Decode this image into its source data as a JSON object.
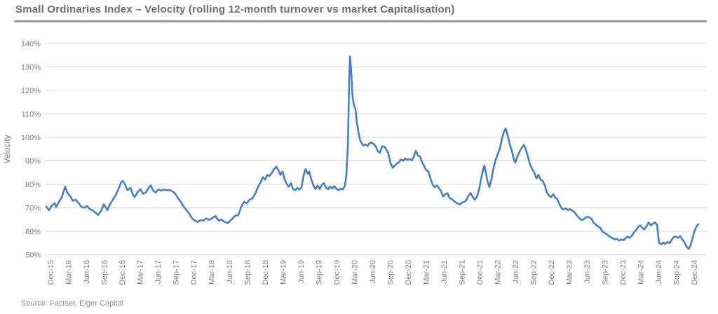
{
  "header": {
    "title": "Small Ordinaries Index – Velocity (rolling 12-month turnover vs market Capitalisation)"
  },
  "footer": {
    "source": "Source: Factset, Eiger Capital"
  },
  "chart_data": {
    "type": "line",
    "title": "Small Ordinaries Index – Velocity (rolling 12-month turnover vs market Capitalisation)",
    "xlabel": "",
    "ylabel": "Velocity",
    "ylim": [
      50,
      140
    ],
    "ytick_step": 10,
    "yticks": [
      "140%",
      "130%",
      "120%",
      "110%",
      "100%",
      "90%",
      "80%",
      "70%",
      "60%",
      "50%"
    ],
    "xticks": [
      "Dec-15",
      "Mar-16",
      "Jun-16",
      "Sep-16",
      "Dec-16",
      "Mar-17",
      "Jun-17",
      "Sep-17",
      "Dec-17",
      "Mar-18",
      "Jun-18",
      "Sep-18",
      "Dec-18",
      "Mar-19",
      "Jun-19",
      "Sep-19",
      "Dec-19",
      "Mar-20",
      "Jun-20",
      "Sep-20",
      "Dec-20",
      "Mar-21",
      "Jun-21",
      "Sep-21",
      "Dec-21",
      "Mar-22",
      "Jun-22",
      "Sep-22",
      "Dec-22",
      "Mar-23",
      "Jun-23",
      "Sep-23",
      "Dec-23",
      "Mar-24",
      "Jun-24",
      "Sep-24",
      "Dec-24"
    ],
    "grid": "horizontal",
    "legend": "none",
    "line_color": "#4a7eba",
    "notable_points": {
      "covid_spike_mar20_pct": 134.5,
      "peak_apr22_pct": 104,
      "trough_nov24_pct": 52.5,
      "last_value_dec24_pct": 63
    },
    "series": [
      {
        "name": "Velocity",
        "x_unit": "quarters_since_Dec-15",
        "points": [
          [
            -0.24,
            70.5
          ],
          [
            -0.08,
            69
          ],
          [
            0.08,
            71
          ],
          [
            0.24,
            72
          ],
          [
            0.31,
            70.2
          ],
          [
            0.47,
            72.5
          ],
          [
            0.63,
            74.5
          ],
          [
            0.82,
            79
          ],
          [
            0.94,
            76.5
          ],
          [
            1.1,
            75
          ],
          [
            1.25,
            73
          ],
          [
            1.41,
            73.5
          ],
          [
            1.57,
            72
          ],
          [
            1.73,
            70.5
          ],
          [
            1.88,
            70
          ],
          [
            2.04,
            70.8
          ],
          [
            2.2,
            69.5
          ],
          [
            2.35,
            69
          ],
          [
            2.51,
            68
          ],
          [
            2.67,
            67
          ],
          [
            2.82,
            68.5
          ],
          [
            2.98,
            71.5
          ],
          [
            3.18,
            69
          ],
          [
            3.33,
            71.5
          ],
          [
            3.49,
            73.5
          ],
          [
            3.65,
            75.5
          ],
          [
            3.8,
            78
          ],
          [
            3.96,
            81
          ],
          [
            4.04,
            81.5
          ],
          [
            4.16,
            80
          ],
          [
            4.31,
            77.5
          ],
          [
            4.47,
            78.5
          ],
          [
            4.59,
            76
          ],
          [
            4.71,
            74.5
          ],
          [
            4.86,
            76.5
          ],
          [
            5.02,
            78
          ],
          [
            5.18,
            76
          ],
          [
            5.33,
            76.5
          ],
          [
            5.49,
            78.5
          ],
          [
            5.61,
            79.5
          ],
          [
            5.73,
            77.5
          ],
          [
            5.88,
            76.5
          ],
          [
            6.04,
            77.8
          ],
          [
            6.2,
            77.3
          ],
          [
            6.35,
            77.8
          ],
          [
            6.51,
            77.4
          ],
          [
            6.67,
            77.6
          ],
          [
            6.82,
            77
          ],
          [
            6.98,
            76
          ],
          [
            7.14,
            74
          ],
          [
            7.29,
            72.5
          ],
          [
            7.45,
            70.5
          ],
          [
            7.61,
            69
          ],
          [
            7.76,
            67.5
          ],
          [
            7.92,
            65.5
          ],
          [
            8.08,
            64.5
          ],
          [
            8.24,
            64
          ],
          [
            8.39,
            64.8
          ],
          [
            8.55,
            64.5
          ],
          [
            8.71,
            65.5
          ],
          [
            8.86,
            64.8
          ],
          [
            9.02,
            65.5
          ],
          [
            9.22,
            66.5
          ],
          [
            9.41,
            64.5
          ],
          [
            9.57,
            65
          ],
          [
            9.73,
            64
          ],
          [
            9.92,
            63.5
          ],
          [
            10.12,
            65
          ],
          [
            10.31,
            66.5
          ],
          [
            10.51,
            67
          ],
          [
            10.67,
            70.5
          ],
          [
            10.82,
            72.5
          ],
          [
            10.98,
            72
          ],
          [
            11.14,
            73.5
          ],
          [
            11.29,
            74
          ],
          [
            11.45,
            76
          ],
          [
            11.61,
            79
          ],
          [
            11.76,
            81
          ],
          [
            11.88,
            83
          ],
          [
            12,
            82
          ],
          [
            12.12,
            84
          ],
          [
            12.24,
            83.5
          ],
          [
            12.39,
            85
          ],
          [
            12.51,
            86.5
          ],
          [
            12.63,
            87.5
          ],
          [
            12.75,
            86
          ],
          [
            12.86,
            84
          ],
          [
            12.98,
            85.5
          ],
          [
            13.1,
            82
          ],
          [
            13.22,
            80
          ],
          [
            13.33,
            79
          ],
          [
            13.45,
            80.5
          ],
          [
            13.57,
            78
          ],
          [
            13.69,
            77.5
          ],
          [
            13.8,
            78.5
          ],
          [
            13.92,
            77.8
          ],
          [
            14.04,
            78.5
          ],
          [
            14.16,
            84
          ],
          [
            14.27,
            86.5
          ],
          [
            14.39,
            84.5
          ],
          [
            14.47,
            85.5
          ],
          [
            14.59,
            82
          ],
          [
            14.71,
            79.5
          ],
          [
            14.82,
            78
          ],
          [
            14.94,
            79.5
          ],
          [
            15.06,
            78
          ],
          [
            15.18,
            79.8
          ],
          [
            15.29,
            80.5
          ],
          [
            15.41,
            78.5
          ],
          [
            15.53,
            78
          ],
          [
            15.65,
            79
          ],
          [
            15.76,
            78.3
          ],
          [
            15.88,
            79.2
          ],
          [
            16,
            78
          ],
          [
            16.12,
            77.5
          ],
          [
            16.24,
            78.2
          ],
          [
            16.35,
            77.8
          ],
          [
            16.47,
            79.5
          ],
          [
            16.55,
            84
          ],
          [
            16.63,
            96
          ],
          [
            16.71,
            125
          ],
          [
            16.75,
            134.5
          ],
          [
            16.82,
            128
          ],
          [
            16.9,
            117
          ],
          [
            16.98,
            113.5
          ],
          [
            17.06,
            112
          ],
          [
            17.14,
            106
          ],
          [
            17.22,
            102.5
          ],
          [
            17.29,
            99.5
          ],
          [
            17.37,
            98
          ],
          [
            17.49,
            96.5
          ],
          [
            17.61,
            97
          ],
          [
            17.73,
            96.3
          ],
          [
            17.84,
            97.5
          ],
          [
            17.96,
            97.8
          ],
          [
            18.08,
            97.2
          ],
          [
            18.2,
            96
          ],
          [
            18.31,
            94
          ],
          [
            18.43,
            93.5
          ],
          [
            18.55,
            96.3
          ],
          [
            18.67,
            96
          ],
          [
            18.78,
            95
          ],
          [
            18.9,
            93
          ],
          [
            19.02,
            89
          ],
          [
            19.14,
            87
          ],
          [
            19.25,
            88
          ],
          [
            19.37,
            88.8
          ],
          [
            19.49,
            89.5
          ],
          [
            19.61,
            90.5
          ],
          [
            19.73,
            90
          ],
          [
            19.84,
            91
          ],
          [
            19.96,
            90.4
          ],
          [
            20.08,
            90.8
          ],
          [
            20.2,
            90.2
          ],
          [
            20.31,
            91.5
          ],
          [
            20.43,
            94.3
          ],
          [
            20.55,
            92.3
          ],
          [
            20.67,
            91.8
          ],
          [
            20.78,
            89.5
          ],
          [
            20.9,
            87.8
          ],
          [
            21.02,
            86
          ],
          [
            21.14,
            85.5
          ],
          [
            21.25,
            82.5
          ],
          [
            21.37,
            80
          ],
          [
            21.49,
            78.8
          ],
          [
            21.61,
            79.5
          ],
          [
            21.73,
            78.3
          ],
          [
            21.84,
            77.2
          ],
          [
            21.96,
            74.8
          ],
          [
            22.08,
            75.8
          ],
          [
            22.2,
            76.2
          ],
          [
            22.31,
            74.3
          ],
          [
            22.43,
            73.8
          ],
          [
            22.55,
            73
          ],
          [
            22.67,
            72.3
          ],
          [
            22.78,
            71.8
          ],
          [
            22.9,
            71.5
          ],
          [
            23.02,
            72.2
          ],
          [
            23.14,
            72.6
          ],
          [
            23.25,
            73.2
          ],
          [
            23.37,
            75
          ],
          [
            23.49,
            76.3
          ],
          [
            23.61,
            74.8
          ],
          [
            23.73,
            73.5
          ],
          [
            23.84,
            74.5
          ],
          [
            23.96,
            77.5
          ],
          [
            24.08,
            82
          ],
          [
            24.2,
            86.5
          ],
          [
            24.27,
            88
          ],
          [
            24.35,
            85
          ],
          [
            24.43,
            81.5
          ],
          [
            24.55,
            78.8
          ],
          [
            24.67,
            82.5
          ],
          [
            24.78,
            87
          ],
          [
            24.9,
            90.5
          ],
          [
            25.02,
            93
          ],
          [
            25.14,
            95.5
          ],
          [
            25.25,
            99.5
          ],
          [
            25.37,
            102.5
          ],
          [
            25.45,
            103.8
          ],
          [
            25.53,
            102
          ],
          [
            25.61,
            99.5
          ],
          [
            25.69,
            97
          ],
          [
            25.8,
            94.5
          ],
          [
            25.92,
            90.5
          ],
          [
            26,
            89.2
          ],
          [
            26.12,
            92
          ],
          [
            26.24,
            94
          ],
          [
            26.35,
            95.5
          ],
          [
            26.47,
            96.8
          ],
          [
            26.59,
            95
          ],
          [
            26.71,
            91.5
          ],
          [
            26.82,
            88.5
          ],
          [
            26.94,
            86.5
          ],
          [
            27.06,
            85
          ],
          [
            27.18,
            82.5
          ],
          [
            27.29,
            84
          ],
          [
            27.41,
            82
          ],
          [
            27.53,
            81.5
          ],
          [
            27.65,
            79.5
          ],
          [
            27.76,
            76.5
          ],
          [
            27.88,
            75.2
          ],
          [
            28,
            74.5
          ],
          [
            28.12,
            75.8
          ],
          [
            28.24,
            74.3
          ],
          [
            28.35,
            73.8
          ],
          [
            28.47,
            71.5
          ],
          [
            28.59,
            69.8
          ],
          [
            28.71,
            69.3
          ],
          [
            28.82,
            69.8
          ],
          [
            28.94,
            69
          ],
          [
            29.06,
            69.5
          ],
          [
            29.18,
            68.8
          ],
          [
            29.29,
            68.3
          ],
          [
            29.41,
            67
          ],
          [
            29.53,
            66
          ],
          [
            29.65,
            65
          ],
          [
            29.76,
            64.8
          ],
          [
            29.88,
            65.5
          ],
          [
            30.04,
            66.2
          ],
          [
            30.16,
            65.8
          ],
          [
            30.27,
            65.3
          ],
          [
            30.39,
            63.5
          ],
          [
            30.51,
            62.8
          ],
          [
            30.63,
            62
          ],
          [
            30.75,
            61.5
          ],
          [
            30.86,
            60
          ],
          [
            30.98,
            59.3
          ],
          [
            31.1,
            58.8
          ],
          [
            31.22,
            58
          ],
          [
            31.33,
            57.5
          ],
          [
            31.45,
            57
          ],
          [
            31.57,
            56.5
          ],
          [
            31.69,
            56.8
          ],
          [
            31.8,
            56
          ],
          [
            31.92,
            56.5
          ],
          [
            32.04,
            56.2
          ],
          [
            32.16,
            57
          ],
          [
            32.27,
            57.8
          ],
          [
            32.39,
            57.2
          ],
          [
            32.51,
            58
          ],
          [
            32.63,
            59.5
          ],
          [
            32.75,
            60.5
          ],
          [
            32.86,
            61.8
          ],
          [
            32.98,
            62.5
          ],
          [
            33.1,
            61.5
          ],
          [
            33.22,
            60.8
          ],
          [
            33.33,
            62
          ],
          [
            33.45,
            63.8
          ],
          [
            33.57,
            62.5
          ],
          [
            33.69,
            63.2
          ],
          [
            33.8,
            63.8
          ],
          [
            33.92,
            62.8
          ],
          [
            34.04,
            55
          ],
          [
            34.16,
            54.5
          ],
          [
            34.27,
            55.2
          ],
          [
            34.39,
            54.6
          ],
          [
            34.51,
            55.5
          ],
          [
            34.63,
            55
          ],
          [
            34.75,
            56.5
          ],
          [
            34.86,
            57.5
          ],
          [
            34.98,
            57.8
          ],
          [
            35.1,
            57.2
          ],
          [
            35.22,
            58
          ],
          [
            35.33,
            56.5
          ],
          [
            35.45,
            55.5
          ],
          [
            35.57,
            53.5
          ],
          [
            35.69,
            52.5
          ],
          [
            35.8,
            54
          ],
          [
            35.92,
            57.5
          ],
          [
            36.04,
            60.5
          ],
          [
            36.16,
            62.5
          ],
          [
            36.24,
            63
          ]
        ]
      }
    ]
  }
}
